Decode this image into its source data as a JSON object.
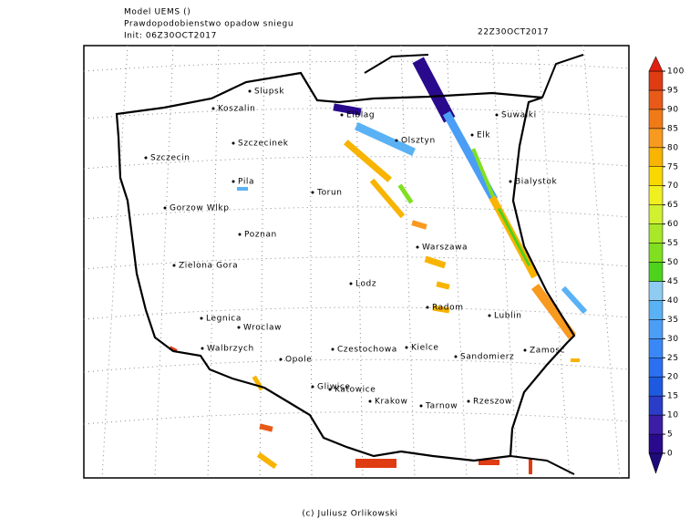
{
  "header": {
    "model": "Model UEMS ()",
    "product": "Prawdopodobienstwo opadow sniegu",
    "init": "Init: 06Z30OCT2017",
    "valid": "22Z30OCT2017"
  },
  "cities": [
    "Slupsk",
    "Koszalin",
    "Suwalki",
    "Elblag",
    "Olsztyn",
    "Elk",
    "Szczecinek",
    "Szczecin",
    "Bialystok",
    "Pila",
    "Torun",
    "Gorzow Wlkp",
    "Poznan",
    "Warszawa",
    "Zielona Gora",
    "Lodz",
    "Radom",
    "Lublin",
    "Legnica",
    "Wroclaw",
    "Walbrzych",
    "Czestochowa",
    "Kielce",
    "Sandomierz",
    "Zamosc",
    "Opole",
    "Gliwice",
    "Katowice",
    "Krakow",
    "Tarnow",
    "Rzeszow"
  ],
  "legend": {
    "ticks": [
      0,
      5,
      10,
      15,
      20,
      25,
      30,
      35,
      40,
      45,
      50,
      55,
      60,
      65,
      70,
      75,
      80,
      85,
      90,
      95,
      100
    ],
    "colors": [
      "#2a0a8c",
      "#3c1ea6",
      "#2a3cc8",
      "#1e5ae0",
      "#2a70f0",
      "#3a88f5",
      "#4a9ef5",
      "#5ab2f5",
      "#90ccf2",
      "#4ed21e",
      "#80e020",
      "#a8e828",
      "#d0f030",
      "#f0f020",
      "#f8d800",
      "#f8b400",
      "#f89a20",
      "#f07a18",
      "#e85a18",
      "#e03c14"
    ],
    "under_color": "#1e0a78",
    "over_color": "#e02010"
  },
  "footer": "(c) Juliusz Orlikowski"
}
